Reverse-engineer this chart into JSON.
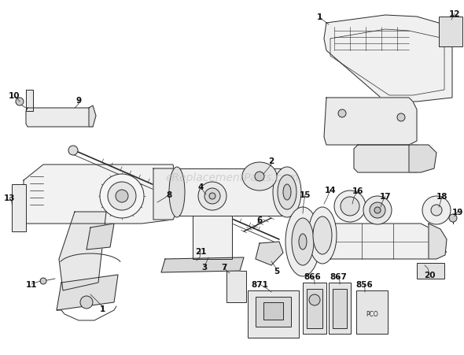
{
  "background_color": "#ffffff",
  "watermark_text": "eReplacementParts.com",
  "watermark_color": "#bbbbbb",
  "watermark_fontsize": 10,
  "line_color": "#2a2a2a",
  "light_gray": "#e8e8e8",
  "mid_gray": "#d0d0d0",
  "dark_gray": "#b0b0b0",
  "line_width": 0.7,
  "label_fontsize": 7.5,
  "label_color": "#111111",
  "fig_width": 5.9,
  "fig_height": 4.52,
  "dpi": 100
}
